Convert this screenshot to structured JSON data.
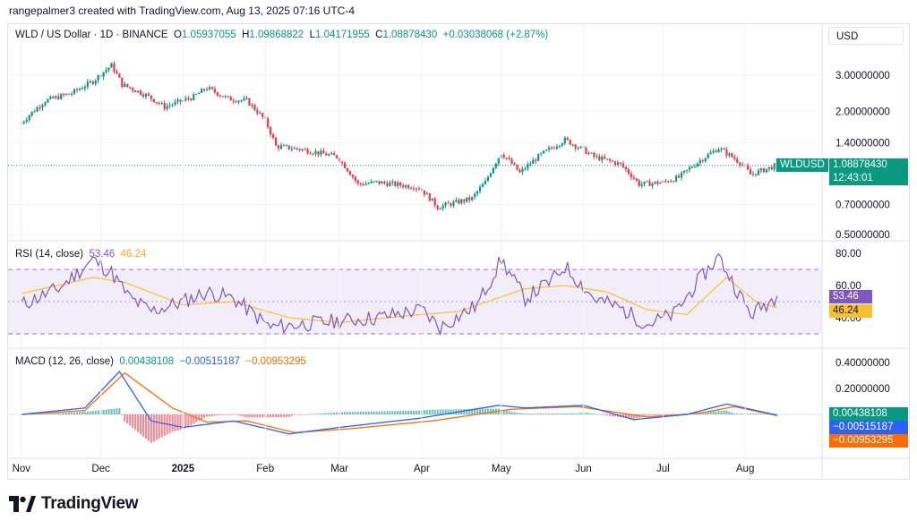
{
  "header": {
    "attribution": "rangepalmer3 created with TradingView.com, Aug 13, 2025 07:16 UTC-4"
  },
  "symbol": {
    "name": "WLD / US Dollar · 1D · BINANCE",
    "o_label": "O",
    "o_value": "1.05937055",
    "h_label": "H",
    "h_value": "1.09868822",
    "l_label": "L",
    "l_value": "1.04171955",
    "c_label": "C",
    "c_value": "1.08878430",
    "change": "+0.03038068 (+2.87%)",
    "ticker_badge": "WLDUSD",
    "price_badge": "1.08878430",
    "countdown": "12:43:01"
  },
  "currency_button": "USD",
  "rsi": {
    "label": "RSI (14, close)",
    "value": "53.46",
    "ma_value": "46.24"
  },
  "macd": {
    "label": "MACD (12, 26, close)",
    "hist_value": "0.00438108",
    "macd_value": "−0.00515187",
    "signal_value": "−0.00953295"
  },
  "colors": {
    "up": "#089981",
    "down": "#f23645",
    "rsi": "#7e57c2",
    "rsi_ma": "#fbc02d",
    "macd": "#2962ff",
    "signal": "#ff6d00",
    "band": "#ede7f6"
  },
  "brand": {
    "name": "TradingView"
  },
  "chart_data": [
    {
      "type": "candlestick",
      "title": "WLD / US Dollar · 1D · BINANCE",
      "scale": "log",
      "y_ticks": [
        "3.00000000",
        "2.00000000",
        "1.40000000",
        "0.70000000",
        "0.50000000"
      ],
      "y_tick_values": [
        3.0,
        2.0,
        1.4,
        0.7,
        0.5
      ],
      "x_ticks": [
        "Nov",
        "Dec",
        "2025",
        "Feb",
        "Mar",
        "Apr",
        "May",
        "Jun",
        "Jul",
        "Aug"
      ],
      "close_path": [
        [
          "2024-11-01",
          1.75
        ],
        [
          "2024-11-10",
          2.25
        ],
        [
          "2024-11-20",
          2.45
        ],
        [
          "2024-11-28",
          2.8
        ],
        [
          "2024-12-05",
          3.35
        ],
        [
          "2024-12-09",
          2.7
        ],
        [
          "2024-12-18",
          2.4
        ],
        [
          "2024-12-25",
          2.1
        ],
        [
          "2025-01-05",
          2.35
        ],
        [
          "2025-01-10",
          2.6
        ],
        [
          "2025-01-18",
          2.3
        ],
        [
          "2025-01-25",
          2.25
        ],
        [
          "2025-02-01",
          1.8
        ],
        [
          "2025-02-05",
          1.35
        ],
        [
          "2025-02-15",
          1.3
        ],
        [
          "2025-02-28",
          1.2
        ],
        [
          "2025-03-08",
          0.88
        ],
        [
          "2025-03-15",
          0.9
        ],
        [
          "2025-03-31",
          0.85
        ],
        [
          "2025-04-07",
          0.68
        ],
        [
          "2025-04-20",
          0.75
        ],
        [
          "2025-04-25",
          0.9
        ],
        [
          "2025-05-01",
          1.25
        ],
        [
          "2025-05-08",
          1.0
        ],
        [
          "2025-05-15",
          1.2
        ],
        [
          "2025-05-25",
          1.45
        ],
        [
          "2025-06-05",
          1.2
        ],
        [
          "2025-06-15",
          1.1
        ],
        [
          "2025-06-22",
          0.88
        ],
        [
          "2025-07-01",
          0.9
        ],
        [
          "2025-07-07",
          0.95
        ],
        [
          "2025-07-15",
          1.15
        ],
        [
          "2025-07-22",
          1.32
        ],
        [
          "2025-07-31",
          1.1
        ],
        [
          "2025-08-03",
          0.98
        ],
        [
          "2025-08-13",
          1.0888
        ]
      ],
      "last_close": 1.0887843,
      "open": 1.05937055,
      "high": 1.09868822,
      "low": 1.04171955,
      "close": 1.0887843
    },
    {
      "type": "line",
      "title": "RSI (14, close)",
      "y_ticks": [
        "80.00",
        "60.00",
        "40.00"
      ],
      "y_tick_values": [
        80,
        60,
        40
      ],
      "bands": [
        30,
        70
      ],
      "series": [
        {
          "name": "RSI",
          "x": [
            "2024-11-01",
            "2024-11-15",
            "2024-11-28",
            "2024-12-05",
            "2024-12-12",
            "2024-12-20",
            "2025-01-01",
            "2025-01-10",
            "2025-01-20",
            "2025-02-03",
            "2025-02-15",
            "2025-03-01",
            "2025-03-15",
            "2025-04-01",
            "2025-04-08",
            "2025-04-22",
            "2025-05-01",
            "2025-05-10",
            "2025-05-20",
            "2025-05-25",
            "2025-06-05",
            "2025-06-15",
            "2025-06-25",
            "2025-07-05",
            "2025-07-15",
            "2025-07-22",
            "2025-07-28",
            "2025-08-03",
            "2025-08-13"
          ],
          "values": [
            48,
            58,
            76,
            68,
            52,
            44,
            50,
            56,
            52,
            34,
            36,
            38,
            40,
            45,
            34,
            48,
            76,
            52,
            63,
            72,
            52,
            46,
            36,
            42,
            64,
            78,
            60,
            42,
            53.46
          ]
        },
        {
          "name": "RSI-based MA",
          "x": [
            "2024-11-01",
            "2024-11-28",
            "2024-12-10",
            "2025-01-01",
            "2025-01-20",
            "2025-02-10",
            "2025-03-01",
            "2025-03-25",
            "2025-04-15",
            "2025-05-10",
            "2025-05-25",
            "2025-06-10",
            "2025-06-25",
            "2025-07-10",
            "2025-07-25",
            "2025-08-05",
            "2025-08-13"
          ],
          "values": [
            55,
            65,
            62,
            48,
            50,
            40,
            37,
            41,
            44,
            58,
            60,
            56,
            45,
            42,
            65,
            50,
            46.24
          ]
        }
      ]
    },
    {
      "type": "bar+line",
      "title": "MACD (12, 26, close)",
      "y_ticks": [
        "0.40000000",
        "0.20000000"
      ],
      "y_tick_values": [
        0.4,
        0.2
      ],
      "series": [
        {
          "name": "MACD",
          "x": [
            "2024-11-01",
            "2024-11-25",
            "2024-12-08",
            "2024-12-20",
            "2025-01-01",
            "2025-01-20",
            "2025-02-10",
            "2025-03-01",
            "2025-03-31",
            "2025-04-30",
            "2025-05-10",
            "2025-06-01",
            "2025-06-20",
            "2025-07-10",
            "2025-07-25",
            "2025-08-13"
          ],
          "values": [
            0.0,
            0.05,
            0.33,
            -0.05,
            -0.1,
            -0.05,
            -0.15,
            -0.1,
            -0.03,
            0.07,
            0.05,
            0.07,
            -0.04,
            0.0,
            0.08,
            -0.005
          ]
        },
        {
          "name": "Signal",
          "x": [
            "2024-11-01",
            "2024-11-25",
            "2024-12-10",
            "2024-12-28",
            "2025-01-10",
            "2025-01-25",
            "2025-02-12",
            "2025-03-05",
            "2025-04-05",
            "2025-05-05",
            "2025-05-30",
            "2025-06-25",
            "2025-07-15",
            "2025-07-28",
            "2025-08-13"
          ],
          "values": [
            0.0,
            0.03,
            0.32,
            0.05,
            -0.06,
            -0.05,
            -0.14,
            -0.11,
            -0.05,
            0.04,
            0.06,
            -0.02,
            0.01,
            0.06,
            -0.0095
          ]
        }
      ],
      "last_histogram": 0.00438108
    }
  ]
}
